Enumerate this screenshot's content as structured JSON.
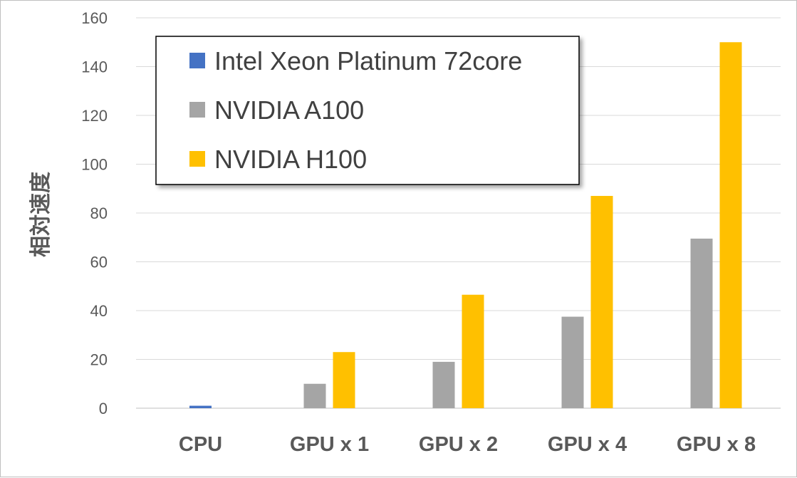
{
  "chart_data": {
    "type": "bar",
    "categories": [
      "CPU",
      "GPU x 1",
      "GPU x 2",
      "GPU x 4",
      "GPU x 8"
    ],
    "series": [
      {
        "name": "Intel Xeon Platinum 72core",
        "color": "#4472C4",
        "values": [
          1,
          null,
          null,
          null,
          null
        ]
      },
      {
        "name": "NVIDIA A100",
        "color": "#A5A5A5",
        "values": [
          null,
          10,
          19,
          37.5,
          69.5
        ]
      },
      {
        "name": "NVIDIA H100",
        "color": "#FFC000",
        "values": [
          null,
          23,
          46.5,
          87,
          150
        ]
      }
    ],
    "title": "",
    "xlabel": "",
    "ylabel": "相対速度",
    "ylim": [
      0,
      160
    ],
    "yticks": [
      0,
      20,
      40,
      60,
      80,
      100,
      120,
      140,
      160
    ],
    "grid": true,
    "legend_position": "top-left"
  }
}
